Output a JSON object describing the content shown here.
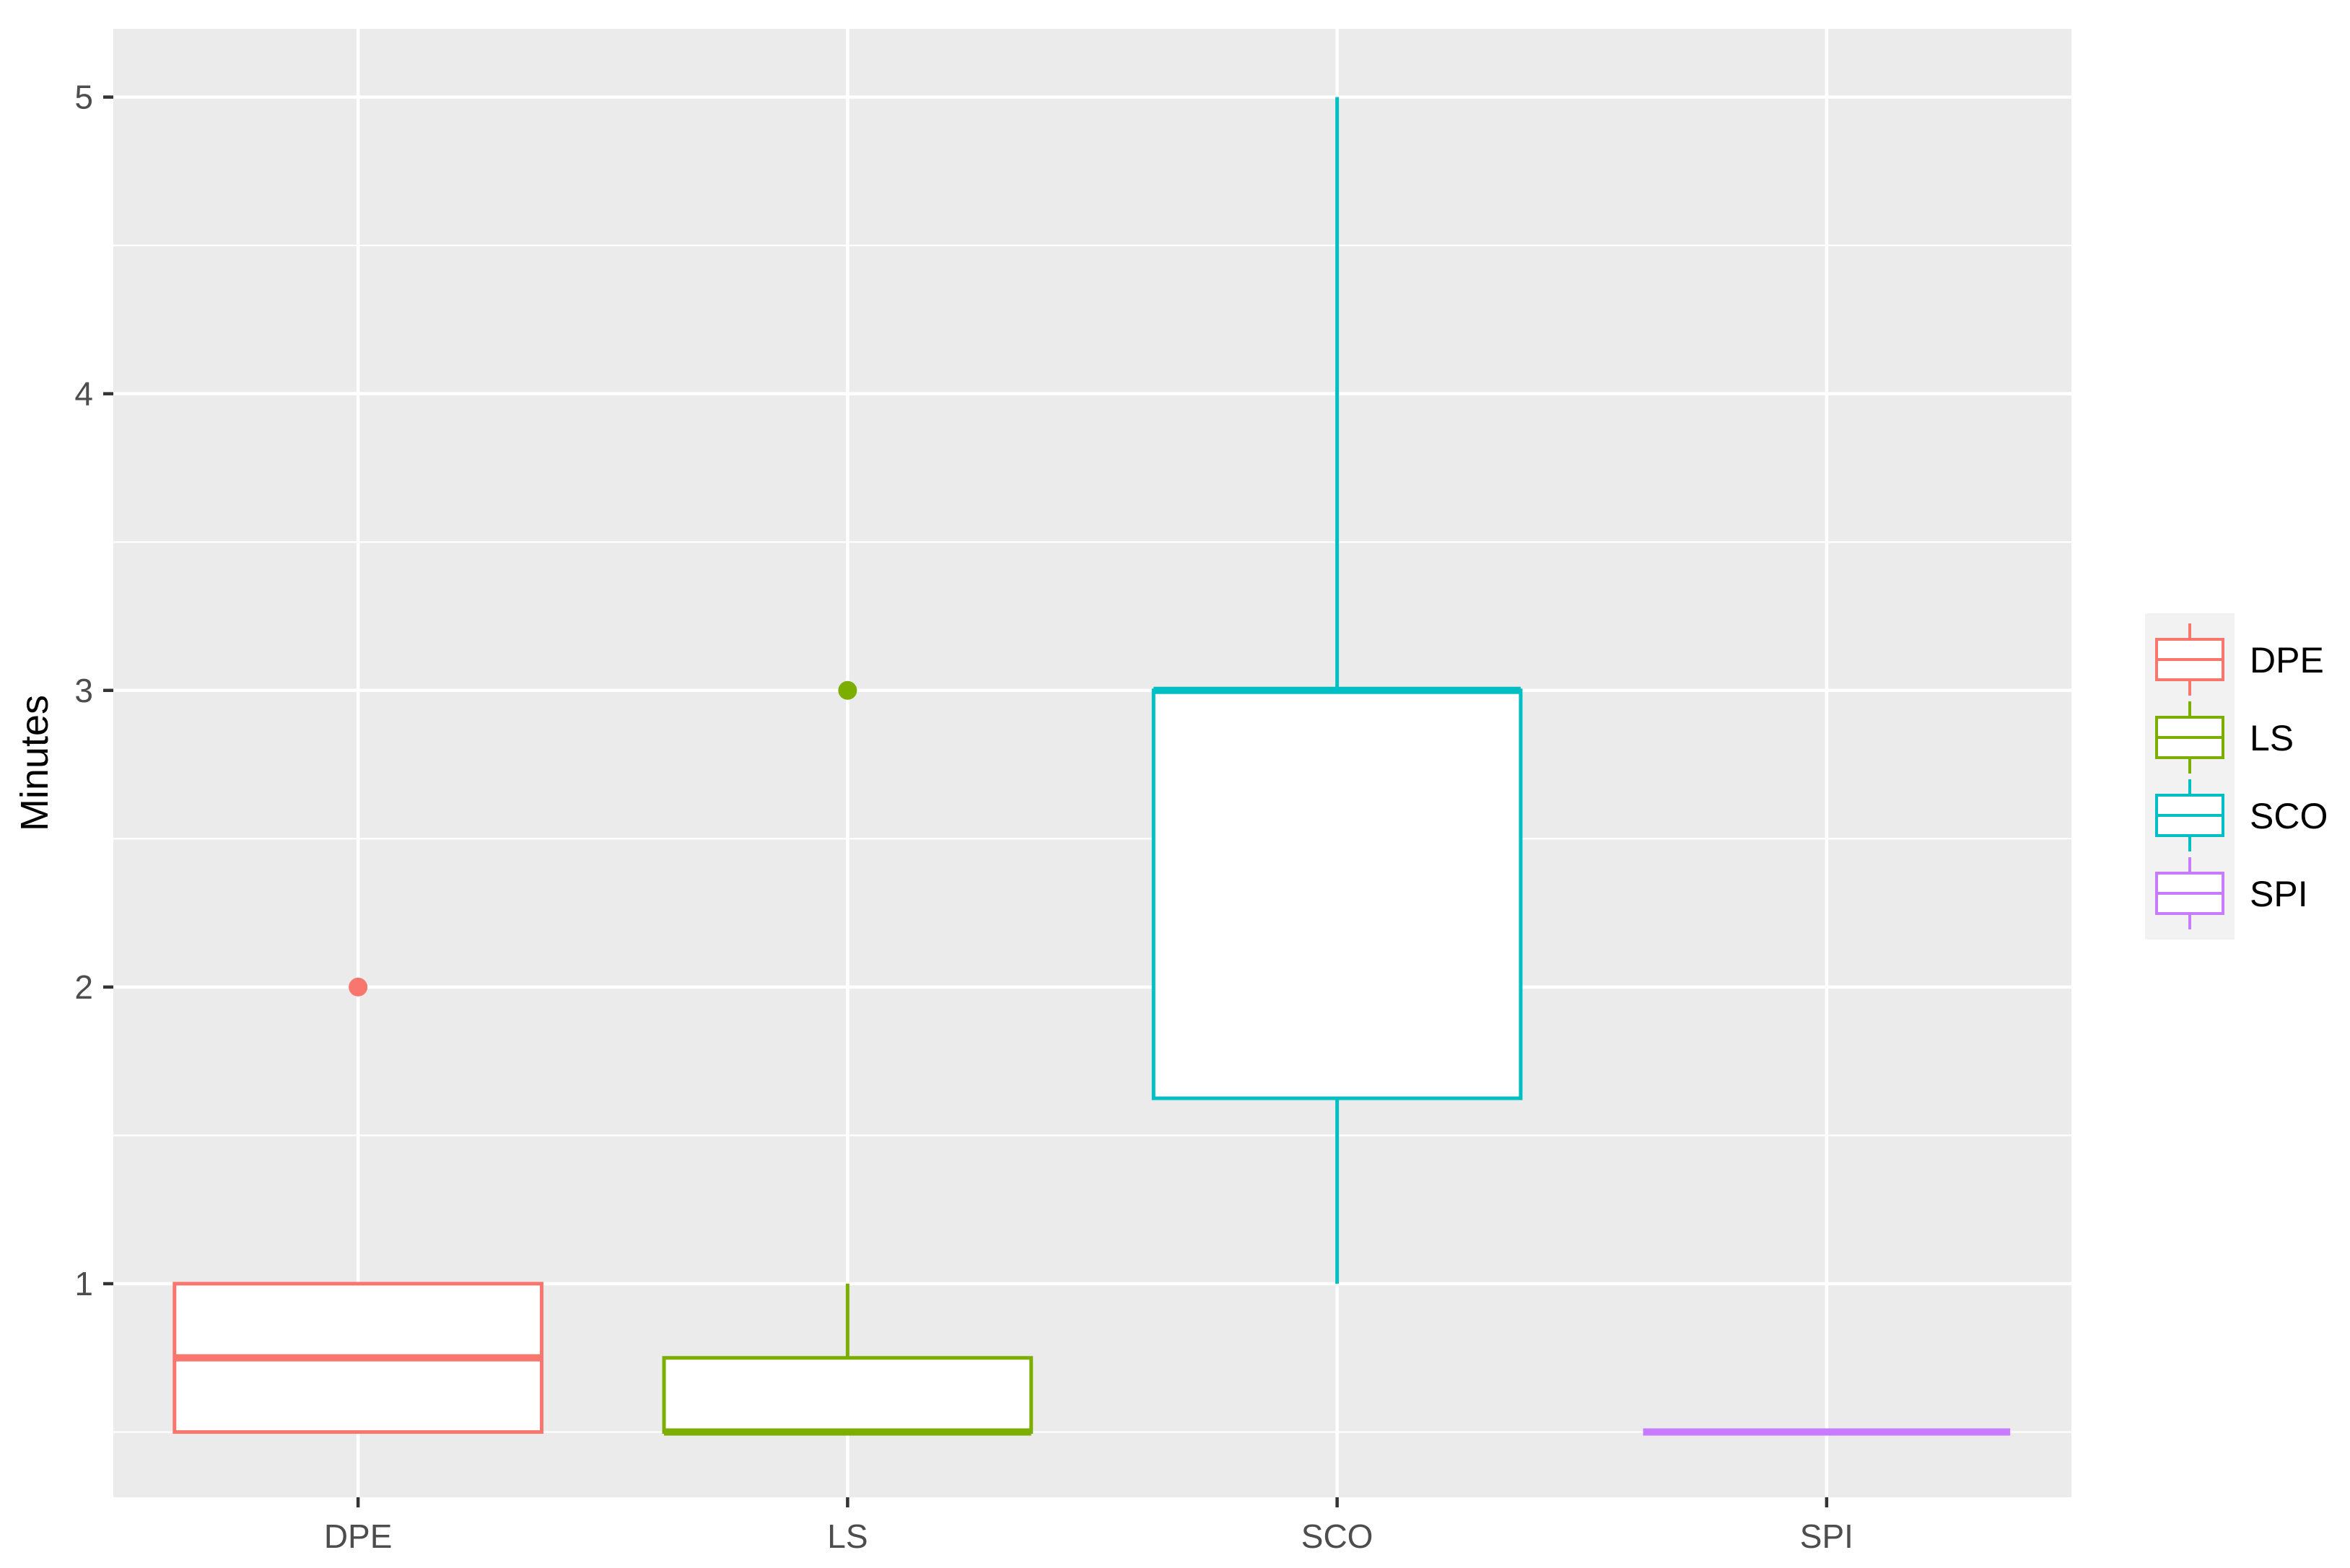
{
  "chart_data": {
    "type": "boxplot",
    "title": "",
    "xlabel": "",
    "ylabel": "Minutes",
    "ylim": [
      0.28,
      5.23
    ],
    "yticks": [
      1,
      2,
      3,
      4,
      5
    ],
    "grid": true,
    "legend_position": "right",
    "background_panel": "#EBEBEB",
    "categories": [
      "DPE",
      "LS",
      "SCO",
      "SPI"
    ],
    "series": [
      {
        "name": "DPE",
        "color": "#F8766D",
        "whisker_low": 0.5,
        "q1": 0.5,
        "median": 0.75,
        "q3": 1.0,
        "whisker_high": 1.0,
        "outliers": [
          2
        ]
      },
      {
        "name": "LS",
        "color": "#7CAE00",
        "whisker_low": 0.5,
        "q1": 0.5,
        "median": 0.5,
        "q3": 0.75,
        "whisker_high": 1.0,
        "outliers": [
          3
        ]
      },
      {
        "name": "SCO",
        "color": "#00BFC4",
        "whisker_low": 1.0,
        "q1": 1.625,
        "median": 3.0,
        "q3": 3.0,
        "whisker_high": 5.0,
        "outliers": []
      },
      {
        "name": "SPI",
        "color": "#C77CFF",
        "whisker_low": 0.5,
        "q1": 0.5,
        "median": 0.5,
        "q3": 0.5,
        "whisker_high": 0.5,
        "outliers": []
      }
    ],
    "legend_entries": [
      "DPE",
      "LS",
      "SCO",
      "SPI"
    ]
  }
}
